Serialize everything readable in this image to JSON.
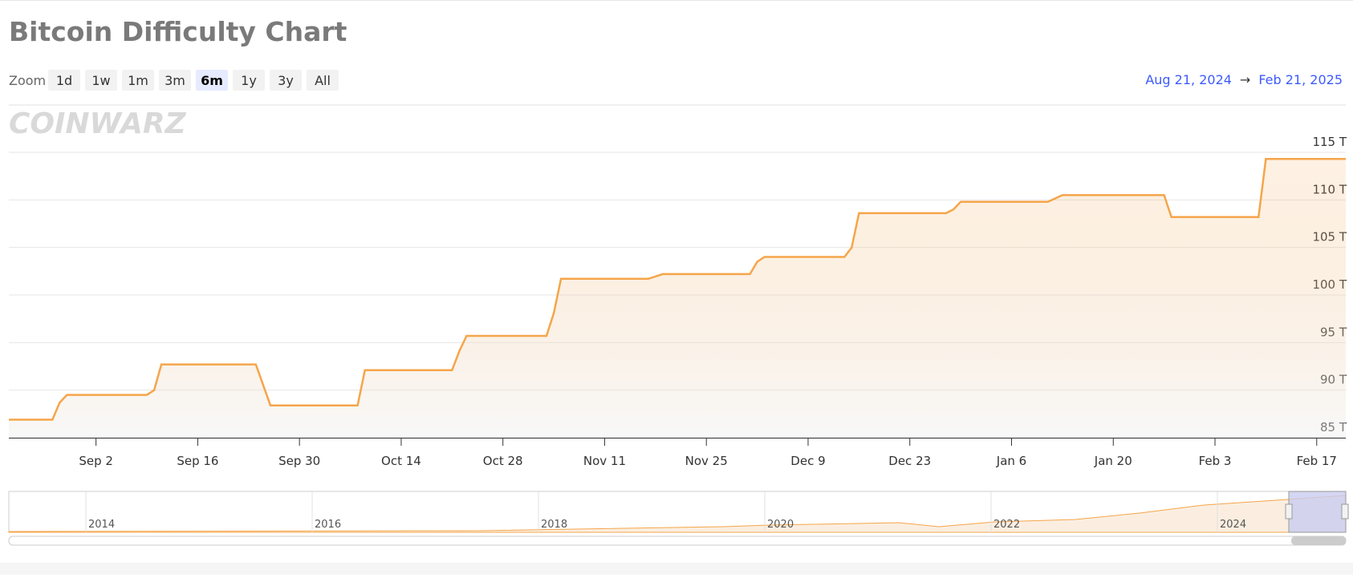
{
  "header": {
    "title": "Bitcoin Difficulty Chart",
    "zoom_label": "Zoom",
    "zoom_buttons": [
      "1d",
      "1w",
      "1m",
      "3m",
      "6m",
      "1y",
      "3y",
      "All"
    ],
    "active_zoom": "6m",
    "range_start": "Aug 21, 2024",
    "range_arrow": "→",
    "range_end": "Feb 21, 2025"
  },
  "watermark": "COINWARZ",
  "chart_data": {
    "type": "line",
    "color": "#f5a54a",
    "area": true,
    "grid": true,
    "x": [
      "2024-08-21",
      "2024-08-27",
      "2024-08-28",
      "2024-08-29",
      "2024-09-09",
      "2024-09-10",
      "2024-09-11",
      "2024-09-24",
      "2024-09-26",
      "2024-10-08",
      "2024-10-09",
      "2024-10-21",
      "2024-10-22",
      "2024-10-23",
      "2024-11-03",
      "2024-11-04",
      "2024-11-05",
      "2024-11-17",
      "2024-11-19",
      "2024-12-01",
      "2024-12-02",
      "2024-12-03",
      "2024-12-14",
      "2024-12-15",
      "2024-12-16",
      "2024-12-28",
      "2024-12-29",
      "2024-12-30",
      "2025-01-11",
      "2025-01-13",
      "2025-01-27",
      "2025-01-28",
      "2025-02-09",
      "2025-02-10",
      "2025-02-21"
    ],
    "values": [
      86.9,
      86.9,
      88.7,
      89.5,
      89.5,
      90.0,
      92.7,
      92.7,
      88.4,
      88.4,
      92.1,
      92.1,
      94.1,
      95.7,
      95.7,
      98.1,
      101.7,
      101.7,
      102.2,
      102.2,
      103.5,
      104.0,
      104.0,
      105.0,
      108.6,
      108.6,
      109.0,
      109.8,
      109.8,
      110.5,
      110.5,
      108.2,
      108.2,
      114.3,
      114.3
    ],
    "xlim": [
      "2024-08-21",
      "2025-02-21"
    ],
    "xticks": [
      {
        "value": "2024-09-02",
        "label": "Sep 2"
      },
      {
        "value": "2024-09-16",
        "label": "Sep 16"
      },
      {
        "value": "2024-09-30",
        "label": "Sep 30"
      },
      {
        "value": "2024-10-14",
        "label": "Oct 14"
      },
      {
        "value": "2024-10-28",
        "label": "Oct 28"
      },
      {
        "value": "2024-11-11",
        "label": "Nov 11"
      },
      {
        "value": "2024-11-25",
        "label": "Nov 25"
      },
      {
        "value": "2024-12-09",
        "label": "Dec 9"
      },
      {
        "value": "2024-12-23",
        "label": "Dec 23"
      },
      {
        "value": "2025-01-06",
        "label": "Jan 6"
      },
      {
        "value": "2025-01-20",
        "label": "Jan 20"
      },
      {
        "value": "2025-02-03",
        "label": "Feb 3"
      },
      {
        "value": "2025-02-17",
        "label": "Feb 17"
      }
    ],
    "ylim": [
      85,
      115
    ],
    "yticks": [
      {
        "value": 85,
        "label": "85 T"
      },
      {
        "value": 90,
        "label": "90 T"
      },
      {
        "value": 95,
        "label": "95 T"
      },
      {
        "value": 100,
        "label": "100 T"
      },
      {
        "value": 105,
        "label": "105 T"
      },
      {
        "value": 110,
        "label": "110 T"
      },
      {
        "value": 115,
        "label": "115 T"
      }
    ]
  },
  "navigator": {
    "years": [
      "2014",
      "2016",
      "2018",
      "2020",
      "2022",
      "2024"
    ]
  }
}
